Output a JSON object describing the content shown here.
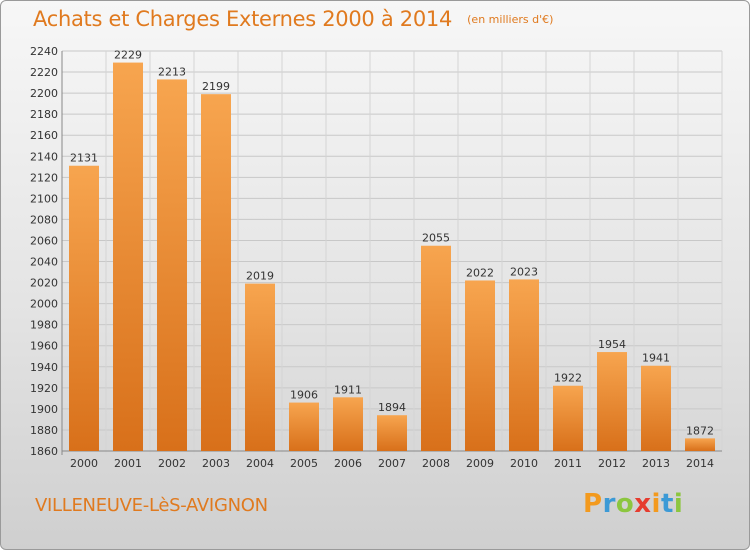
{
  "header": {
    "title": "Achats et Charges Externes 2000 à 2014",
    "unit": "(en milliers d'€)"
  },
  "footer": {
    "city": "VILLENEUVE-LèS-AVIGNON",
    "logo_text": "Proxiti"
  },
  "colors": {
    "bar_light": "#f7a54f",
    "bar_dark": "#d8701a",
    "accent": "#e07a1f"
  },
  "chart_data": {
    "type": "bar",
    "title": "Achats et Charges Externes 2000 à 2014",
    "subtitle": "(en milliers d'€)",
    "categories": [
      "2000",
      "2001",
      "2002",
      "2003",
      "2004",
      "2005",
      "2006",
      "2007",
      "2008",
      "2009",
      "2010",
      "2011",
      "2012",
      "2013",
      "2014"
    ],
    "values": [
      2131,
      2229,
      2213,
      2199,
      2019,
      1906,
      1911,
      1894,
      2055,
      2022,
      2023,
      1922,
      1954,
      1941,
      1872
    ],
    "ylim": [
      1860,
      2240
    ],
    "yticks": [
      1860,
      1880,
      1900,
      1920,
      1940,
      1960,
      1980,
      2000,
      2020,
      2040,
      2060,
      2080,
      2100,
      2120,
      2140,
      2160,
      2180,
      2200,
      2220,
      2240
    ],
    "grid": true,
    "data_labels": true,
    "xlabel": "",
    "ylabel": ""
  }
}
